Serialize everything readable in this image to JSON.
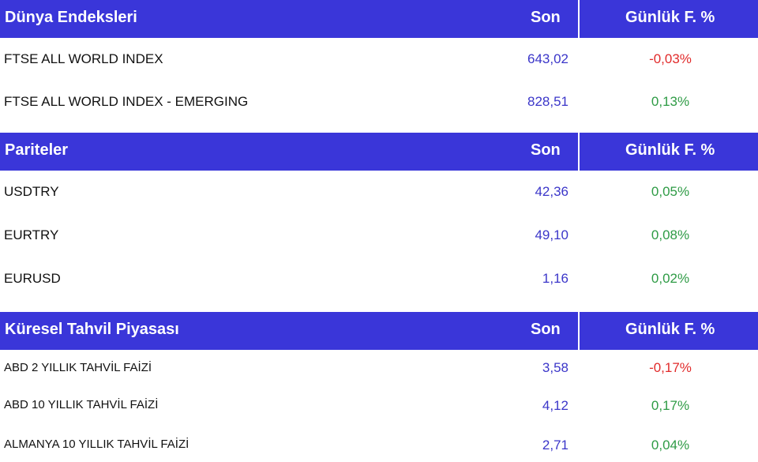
{
  "sections": [
    {
      "title": "Dünya Endeksleri",
      "col_last": "Son",
      "col_change": "Günlük F. %",
      "rows": [
        {
          "name": "FTSE ALL WORLD INDEX",
          "value": "643,02",
          "change": "-0,03%",
          "direction": "down"
        },
        {
          "name": "FTSE ALL WORLD INDEX - EMERGING",
          "value": "828,51",
          "change": "0,13%",
          "direction": "up"
        }
      ]
    },
    {
      "title": "Pariteler",
      "col_last": "Son",
      "col_change": "Günlük F. %",
      "rows": [
        {
          "name": "USDTRY",
          "value": "42,36",
          "change": "0,05%",
          "direction": "up"
        },
        {
          "name": "EURTRY",
          "value": "49,10",
          "change": "0,08%",
          "direction": "up"
        },
        {
          "name": "EURUSD",
          "value": "1,16",
          "change": "0,02%",
          "direction": "up"
        }
      ]
    },
    {
      "title": "Küresel Tahvil Piyasası",
      "col_last": "Son",
      "col_change": "Günlük F. %",
      "rows": [
        {
          "name": "ABD 2 YILLIK TAHVİL FAİZİ",
          "value": "3,58",
          "change": "-0,17%",
          "direction": "down"
        },
        {
          "name": "ABD 10 YILLIK TAHVİL FAİZİ",
          "value": "4,12",
          "change": "0,17%",
          "direction": "up"
        },
        {
          "name": "ALMANYA 10 YILLIK TAHVİL FAİZİ",
          "value": "2,71",
          "change": "0,04%",
          "direction": "up"
        }
      ]
    }
  ],
  "colors": {
    "header_bg": "#3a36d9",
    "value_text": "#3b36c9",
    "negative": "#e12b2b",
    "positive": "#2e9b45"
  }
}
